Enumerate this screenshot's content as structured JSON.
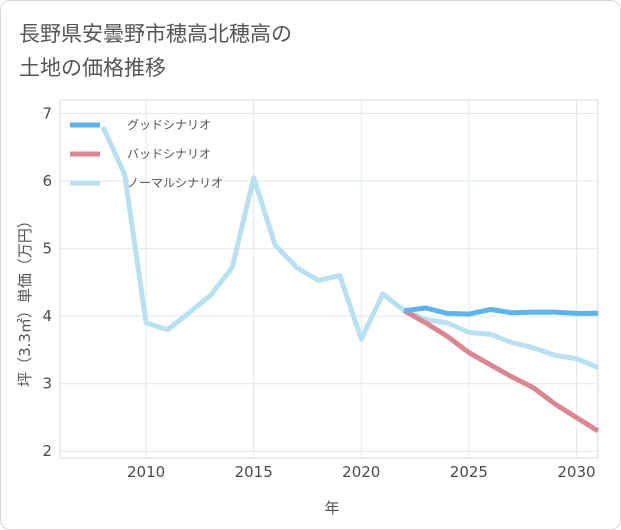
{
  "title_lines": [
    "長野県安曇野市穂高北穂高の",
    "土地の価格推移"
  ],
  "chart_data": {
    "type": "line",
    "title": "長野県安曇野市穂高北穂高の土地の価格推移",
    "xlabel": "年",
    "ylabel": "坪（3.3㎡）単価（万円）",
    "xlim": [
      2006,
      2031
    ],
    "ylim": [
      1.9,
      7.2
    ],
    "xticks": [
      2010,
      2015,
      2020,
      2025,
      2030
    ],
    "yticks": [
      2,
      3,
      4,
      5,
      6,
      7
    ],
    "grid": true,
    "legend_position": "top-left",
    "series": [
      {
        "name": "グッドシナリオ",
        "color": "#5db3ec",
        "x": [
          2022,
          2023,
          2024,
          2025,
          2026,
          2027,
          2028,
          2029,
          2030,
          2031
        ],
        "y": [
          4.08,
          4.12,
          4.04,
          4.03,
          4.1,
          4.05,
          4.06,
          4.06,
          4.04,
          4.04
        ]
      },
      {
        "name": "バッドシナリオ",
        "color": "#db8793",
        "x": [
          2022,
          2023,
          2024,
          2025,
          2026,
          2027,
          2028,
          2029,
          2030,
          2031
        ],
        "y": [
          4.08,
          3.9,
          3.7,
          3.46,
          3.28,
          3.1,
          2.94,
          2.7,
          2.5,
          2.3
        ]
      },
      {
        "name": "ノーマルシナリオ",
        "color": "#b9e0f1",
        "x": [
          2008,
          2009,
          2010,
          2011,
          2012,
          2013,
          2014,
          2015,
          2016,
          2017,
          2018,
          2019,
          2020,
          2021,
          2022,
          2023,
          2024,
          2025,
          2026,
          2027,
          2028,
          2029,
          2030,
          2031
        ],
        "y": [
          6.8,
          6.1,
          3.9,
          3.8,
          4.05,
          4.31,
          4.72,
          6.05,
          5.05,
          4.72,
          4.53,
          4.6,
          3.66,
          4.33,
          4.08,
          3.95,
          3.9,
          3.76,
          3.73,
          3.61,
          3.53,
          3.42,
          3.37,
          3.24
        ]
      }
    ]
  }
}
